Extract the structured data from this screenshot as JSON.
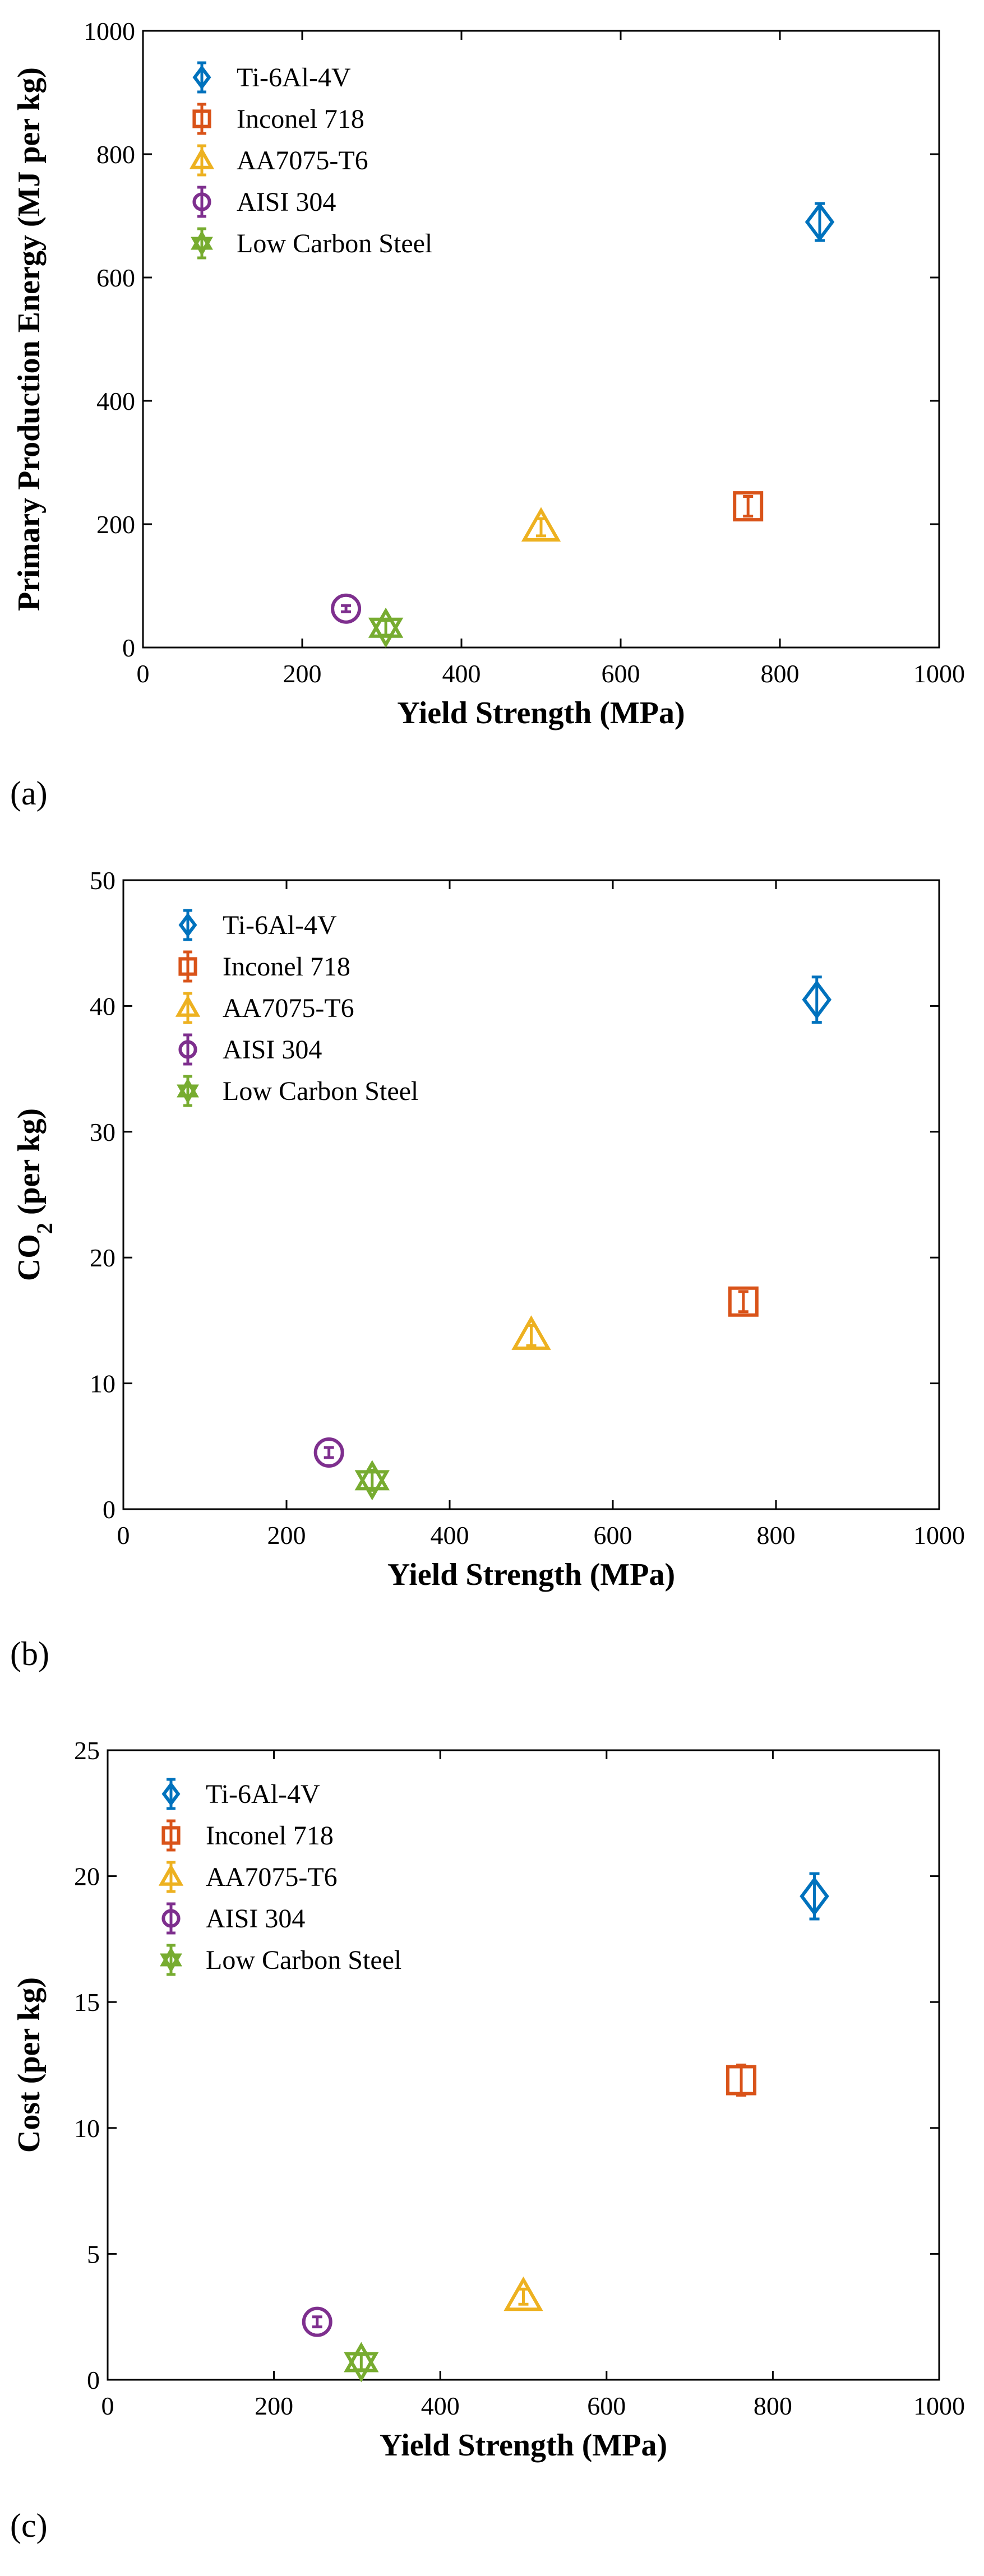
{
  "panels": [
    {
      "label": "(a)",
      "chart_data": {
        "type": "scatter",
        "xlabel": "Yield Strength (MPa)",
        "ylabel": "Primary Production Energy (MJ per kg)",
        "xlim": [
          0,
          1000
        ],
        "ylim": [
          0,
          1000
        ],
        "xticks": [
          0,
          200,
          400,
          600,
          800,
          1000
        ],
        "yticks": [
          0,
          200,
          400,
          600,
          800,
          1000
        ],
        "grid": false,
        "legend_position": "top-left",
        "series": [
          {
            "name": "Ti-6Al-4V",
            "marker": "diamond",
            "color": "#0072BD",
            "x": 850,
            "y": 690,
            "err": 30
          },
          {
            "name": "Inconel 718",
            "marker": "square",
            "color": "#D95319",
            "x": 760,
            "y": 229,
            "err": 16
          },
          {
            "name": "AA7075-T6",
            "marker": "triangle",
            "color": "#EDB120",
            "x": 500,
            "y": 195,
            "err": 14
          },
          {
            "name": "AISI 304",
            "marker": "circle",
            "color": "#7E2F8E",
            "x": 255,
            "y": 63,
            "err": 5
          },
          {
            "name": "Low Carbon Steel",
            "marker": "hexagram",
            "color": "#77AC30",
            "x": 305,
            "y": 32,
            "err": 12
          }
        ]
      }
    },
    {
      "label": "(b)",
      "chart_data": {
        "type": "scatter",
        "xlabel": "Yield Strength (MPa)",
        "ylabel_main": "CO",
        "ylabel_sub": "2",
        "ylabel_rest": " (per kg)",
        "xlim": [
          0,
          1000
        ],
        "ylim": [
          0,
          50
        ],
        "xticks": [
          0,
          200,
          400,
          600,
          800,
          1000
        ],
        "yticks": [
          0,
          10,
          20,
          30,
          40,
          50
        ],
        "grid": false,
        "legend_position": "top-left",
        "series": [
          {
            "name": "Ti-6Al-4V",
            "marker": "diamond",
            "color": "#0072BD",
            "x": 850,
            "y": 40.5,
            "err": 1.8
          },
          {
            "name": "Inconel 718",
            "marker": "square",
            "color": "#D95319",
            "x": 760,
            "y": 16.5,
            "err": 0.8
          },
          {
            "name": "AA7075-T6",
            "marker": "triangle",
            "color": "#EDB120",
            "x": 500,
            "y": 13.8,
            "err": 0.8
          },
          {
            "name": "AISI 304",
            "marker": "circle",
            "color": "#7E2F8E",
            "x": 252,
            "y": 4.5,
            "err": 0.4
          },
          {
            "name": "Low Carbon Steel",
            "marker": "hexagram",
            "color": "#77AC30",
            "x": 305,
            "y": 2.3,
            "err": 0.8
          }
        ]
      }
    },
    {
      "label": "(c)",
      "chart_data": {
        "type": "scatter",
        "xlabel": "Yield Strength (MPa)",
        "ylabel": "Cost (per kg)",
        "xlim": [
          0,
          1000
        ],
        "ylim": [
          0,
          25
        ],
        "xticks": [
          0,
          200,
          400,
          600,
          800,
          1000
        ],
        "yticks": [
          0,
          5,
          10,
          15,
          20,
          25
        ],
        "grid": false,
        "legend_position": "top-left",
        "series": [
          {
            "name": "Ti-6Al-4V",
            "marker": "diamond",
            "color": "#0072BD",
            "x": 850,
            "y": 19.2,
            "err": 0.9
          },
          {
            "name": "Inconel 718",
            "marker": "square",
            "color": "#D95319",
            "x": 762,
            "y": 11.9,
            "err": 0.6
          },
          {
            "name": "AA7075-T6",
            "marker": "triangle",
            "color": "#EDB120",
            "x": 500,
            "y": 3.3,
            "err": 0.3
          },
          {
            "name": "AISI 304",
            "marker": "circle",
            "color": "#7E2F8E",
            "x": 252,
            "y": 2.3,
            "err": 0.2
          },
          {
            "name": "Low Carbon Steel",
            "marker": "hexagram",
            "color": "#77AC30",
            "x": 305,
            "y": 0.7,
            "err": 0.3
          }
        ]
      }
    }
  ]
}
